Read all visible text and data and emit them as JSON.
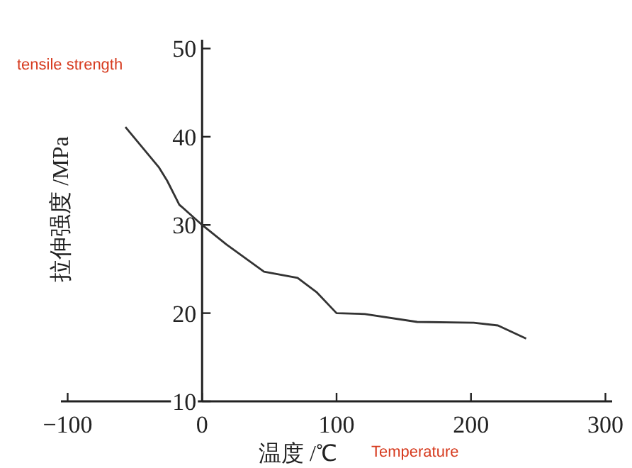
{
  "chart_data": {
    "type": "line",
    "xlabel": "温度 /℃",
    "ylabel": "拉伸强度 /MPa",
    "annotations": [
      "tensile strength",
      "Temperature"
    ],
    "x": [
      -57,
      -32,
      -26,
      -17,
      0,
      18,
      46,
      71,
      85,
      100,
      121,
      160,
      202,
      220,
      241
    ],
    "values": [
      41.1,
      36.5,
      35,
      32.3,
      30,
      27.8,
      24.7,
      24,
      22.4,
      20,
      19.9,
      19,
      18.9,
      18.6,
      17.1
    ],
    "color": "#333333",
    "xlim": [
      -105,
      305
    ],
    "ylim": [
      10,
      51
    ],
    "xticks": [
      -100,
      0,
      100,
      200,
      300
    ],
    "yticks": [
      10,
      20,
      30,
      40,
      50
    ],
    "grid": false
  }
}
